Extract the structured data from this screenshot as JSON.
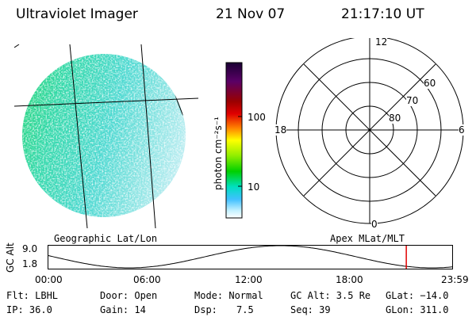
{
  "header": {
    "instrument": "Ultraviolet Imager",
    "date": "21 Nov 07",
    "time": "21:17:10 UT"
  },
  "left_panel": {
    "projection_label": "Geographic Lat/Lon"
  },
  "right_panel": {
    "projection_label": "Apex MLat/MLT",
    "mlt_labels": {
      "top": "12",
      "left": "18",
      "right": "6",
      "bottom": "0"
    },
    "lat_rings": [
      "60",
      "70",
      "80"
    ]
  },
  "colorbar": {
    "unit_label": "photon cm⁻²s⁻¹",
    "ticks": [
      "100",
      "10"
    ],
    "colors": [
      "#1a0033",
      "#5a0066",
      "#9a0000",
      "#e00000",
      "#ff8000",
      "#ffff00",
      "#90ee00",
      "#00d000",
      "#00e0c0",
      "#40c0ff",
      "#c0f0ff",
      "#ffffff"
    ]
  },
  "timeline": {
    "ylabel": "GC Alt",
    "ymax_label": "9.0",
    "ymin_label": "1.8",
    "time_labels": [
      "00:00",
      "06:00",
      "12:00",
      "18:00",
      "23:59"
    ],
    "current_time_fraction": 0.8863,
    "marker_color": "#e00000"
  },
  "status": {
    "flt": "Flt: LBHL",
    "ip": "IP: 36.0",
    "door": "Door: Open",
    "gain": "Gain: 14",
    "mode": "Mode: Normal",
    "dsp_label": "Dsp:",
    "dsp_value": "7.5",
    "gc_alt": "GC Alt: 3.5 Re",
    "seq": "Seq: 39",
    "glat": "GLat: −14.0",
    "glon": "GLon: 311.0"
  }
}
